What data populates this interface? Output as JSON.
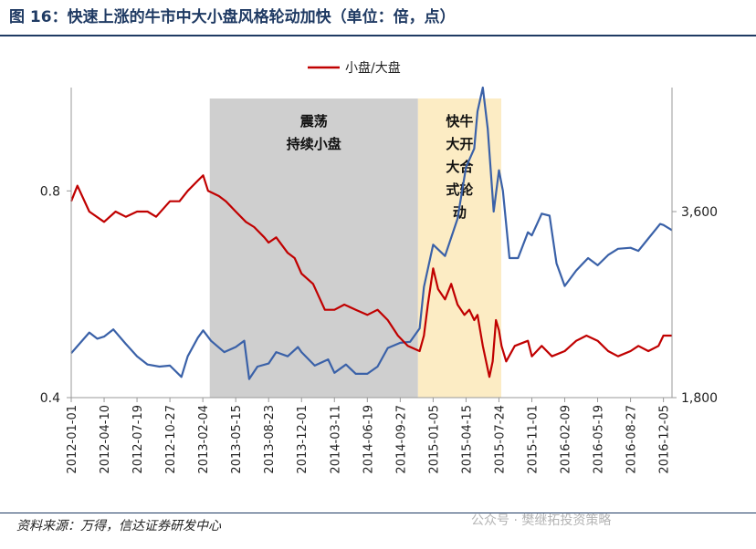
{
  "title": "图 16：快速上涨的牛市中大小盘风格轮动加快（单位：倍，点）",
  "source": "资料来源：万得，信达证券研发中心",
  "watermark": "公众号 · 樊继拓投资策略",
  "colors": {
    "red": "#c00000",
    "blue": "#3a61a8",
    "gray_band": "#cfcfcf",
    "yellow_band": "#fcecc4",
    "title": "#1f3a63"
  },
  "chart_data": {
    "type": "line",
    "title": "",
    "legend": [
      "小盘/大盘"
    ],
    "legend_position": "top-center",
    "x_tick_labels": [
      "2012-01-01",
      "2012-04-10",
      "2012-07-19",
      "2012-10-27",
      "2013-02-04",
      "2013-05-15",
      "2013-08-23",
      "2013-12-01",
      "2014-03-11",
      "2014-06-19",
      "2014-09-27",
      "2015-01-05",
      "2015-04-15",
      "2015-07-24",
      "2015-11-01",
      "2016-02-09",
      "2016-05-19",
      "2016-08-27",
      "2016-12-05"
    ],
    "y_left": {
      "ticks": [
        "0.4",
        "0.8"
      ],
      "range": [
        0.4,
        1.0
      ]
    },
    "y_right": {
      "ticks": [
        "1,800",
        "3,600"
      ],
      "range": [
        1800,
        4800
      ]
    },
    "shaded_regions": [
      {
        "start": "2013-02-25",
        "end": "2014-11-20",
        "text_lines": [
          "震荡",
          "持续小盘"
        ]
      },
      {
        "start": "2014-11-20",
        "end": "2015-07-31",
        "text_lines": [
          "快牛",
          "大开",
          "大合",
          "式轮",
          "动"
        ]
      }
    ],
    "series": [
      {
        "name": "小盘/大盘",
        "axis": "left",
        "points": [
          [
            "2012-01-01",
            0.78
          ],
          [
            "2012-01-20",
            0.81
          ],
          [
            "2012-02-25",
            0.76
          ],
          [
            "2012-04-10",
            0.74
          ],
          [
            "2012-05-15",
            0.76
          ],
          [
            "2012-06-15",
            0.75
          ],
          [
            "2012-07-19",
            0.76
          ],
          [
            "2012-08-20",
            0.76
          ],
          [
            "2012-09-15",
            0.75
          ],
          [
            "2012-10-27",
            0.78
          ],
          [
            "2012-11-25",
            0.78
          ],
          [
            "2012-12-20",
            0.8
          ],
          [
            "2013-01-20",
            0.82
          ],
          [
            "2013-02-05",
            0.83
          ],
          [
            "2013-02-20",
            0.8
          ],
          [
            "2013-03-25",
            0.79
          ],
          [
            "2013-04-15",
            0.78
          ],
          [
            "2013-05-15",
            0.76
          ],
          [
            "2013-06-15",
            0.74
          ],
          [
            "2013-07-10",
            0.73
          ],
          [
            "2013-08-10",
            0.71
          ],
          [
            "2013-08-23",
            0.7
          ],
          [
            "2013-09-15",
            0.71
          ],
          [
            "2013-10-20",
            0.68
          ],
          [
            "2013-11-10",
            0.67
          ],
          [
            "2013-12-01",
            0.64
          ],
          [
            "2014-01-05",
            0.62
          ],
          [
            "2014-02-10",
            0.57
          ],
          [
            "2014-03-11",
            0.57
          ],
          [
            "2014-04-10",
            0.58
          ],
          [
            "2014-05-15",
            0.57
          ],
          [
            "2014-06-19",
            0.56
          ],
          [
            "2014-07-20",
            0.57
          ],
          [
            "2014-08-20",
            0.55
          ],
          [
            "2014-09-20",
            0.52
          ],
          [
            "2014-10-20",
            0.5
          ],
          [
            "2014-11-25",
            0.49
          ],
          [
            "2014-12-08",
            0.52
          ],
          [
            "2014-12-20",
            0.58
          ],
          [
            "2015-01-05",
            0.65
          ],
          [
            "2015-01-20",
            0.61
          ],
          [
            "2015-02-10",
            0.59
          ],
          [
            "2015-03-01",
            0.62
          ],
          [
            "2015-03-20",
            0.58
          ],
          [
            "2015-04-10",
            0.56
          ],
          [
            "2015-04-25",
            0.57
          ],
          [
            "2015-05-10",
            0.55
          ],
          [
            "2015-05-20",
            0.56
          ],
          [
            "2015-06-05",
            0.5
          ],
          [
            "2015-06-25",
            0.44
          ],
          [
            "2015-07-05",
            0.47
          ],
          [
            "2015-07-15",
            0.55
          ],
          [
            "2015-07-24",
            0.53
          ],
          [
            "2015-08-01",
            0.5
          ],
          [
            "2015-08-15",
            0.47
          ],
          [
            "2015-09-10",
            0.5
          ],
          [
            "2015-10-20",
            0.51
          ],
          [
            "2015-11-01",
            0.48
          ],
          [
            "2015-12-01",
            0.5
          ],
          [
            "2016-01-01",
            0.48
          ],
          [
            "2016-02-09",
            0.49
          ],
          [
            "2016-03-15",
            0.51
          ],
          [
            "2016-04-15",
            0.52
          ],
          [
            "2016-05-19",
            0.51
          ],
          [
            "2016-06-20",
            0.49
          ],
          [
            "2016-07-20",
            0.48
          ],
          [
            "2016-08-27",
            0.49
          ],
          [
            "2016-09-20",
            0.5
          ],
          [
            "2016-10-20",
            0.49
          ],
          [
            "2016-11-20",
            0.5
          ],
          [
            "2016-12-05",
            0.52
          ],
          [
            "2016-12-31",
            0.52
          ]
        ]
      },
      {
        "name": "",
        "axis": "right",
        "points": [
          [
            "2012-01-01",
            2230
          ],
          [
            "2012-02-25",
            2430
          ],
          [
            "2012-03-20",
            2370
          ],
          [
            "2012-04-10",
            2390
          ],
          [
            "2012-05-08",
            2460
          ],
          [
            "2012-06-15",
            2320
          ],
          [
            "2012-07-19",
            2200
          ],
          [
            "2012-08-20",
            2120
          ],
          [
            "2012-09-25",
            2100
          ],
          [
            "2012-10-27",
            2110
          ],
          [
            "2012-12-01",
            2000
          ],
          [
            "2012-12-20",
            2200
          ],
          [
            "2013-01-20",
            2380
          ],
          [
            "2013-02-05",
            2450
          ],
          [
            "2013-03-01",
            2350
          ],
          [
            "2013-04-10",
            2240
          ],
          [
            "2013-05-15",
            2290
          ],
          [
            "2013-06-10",
            2350
          ],
          [
            "2013-06-25",
            1980
          ],
          [
            "2013-07-20",
            2100
          ],
          [
            "2013-08-23",
            2130
          ],
          [
            "2013-09-15",
            2240
          ],
          [
            "2013-10-20",
            2200
          ],
          [
            "2013-11-20",
            2290
          ],
          [
            "2013-12-01",
            2240
          ],
          [
            "2014-01-10",
            2110
          ],
          [
            "2014-02-20",
            2170
          ],
          [
            "2014-03-11",
            2040
          ],
          [
            "2014-04-15",
            2120
          ],
          [
            "2014-05-15",
            2030
          ],
          [
            "2014-06-19",
            2030
          ],
          [
            "2014-07-20",
            2100
          ],
          [
            "2014-08-20",
            2280
          ],
          [
            "2014-09-27",
            2330
          ],
          [
            "2014-10-27",
            2340
          ],
          [
            "2014-11-25",
            2470
          ],
          [
            "2014-12-08",
            2870
          ],
          [
            "2015-01-05",
            3280
          ],
          [
            "2015-02-10",
            3170
          ],
          [
            "2015-03-20",
            3530
          ],
          [
            "2015-04-15",
            4030
          ],
          [
            "2015-05-10",
            4210
          ],
          [
            "2015-05-20",
            4570
          ],
          [
            "2015-06-05",
            4800
          ],
          [
            "2015-06-20",
            4400
          ],
          [
            "2015-07-08",
            3600
          ],
          [
            "2015-07-24",
            4000
          ],
          [
            "2015-08-05",
            3800
          ],
          [
            "2015-08-25",
            3150
          ],
          [
            "2015-09-20",
            3150
          ],
          [
            "2015-10-20",
            3400
          ],
          [
            "2015-11-01",
            3370
          ],
          [
            "2015-12-01",
            3580
          ],
          [
            "2015-12-25",
            3560
          ],
          [
            "2016-01-15",
            3100
          ],
          [
            "2016-02-09",
            2880
          ],
          [
            "2016-03-15",
            3030
          ],
          [
            "2016-04-20",
            3150
          ],
          [
            "2016-05-19",
            3080
          ],
          [
            "2016-06-20",
            3180
          ],
          [
            "2016-07-20",
            3240
          ],
          [
            "2016-08-27",
            3250
          ],
          [
            "2016-09-20",
            3220
          ],
          [
            "2016-10-20",
            3340
          ],
          [
            "2016-11-25",
            3480
          ],
          [
            "2016-12-05",
            3470
          ],
          [
            "2016-12-31",
            3420
          ]
        ]
      }
    ]
  }
}
